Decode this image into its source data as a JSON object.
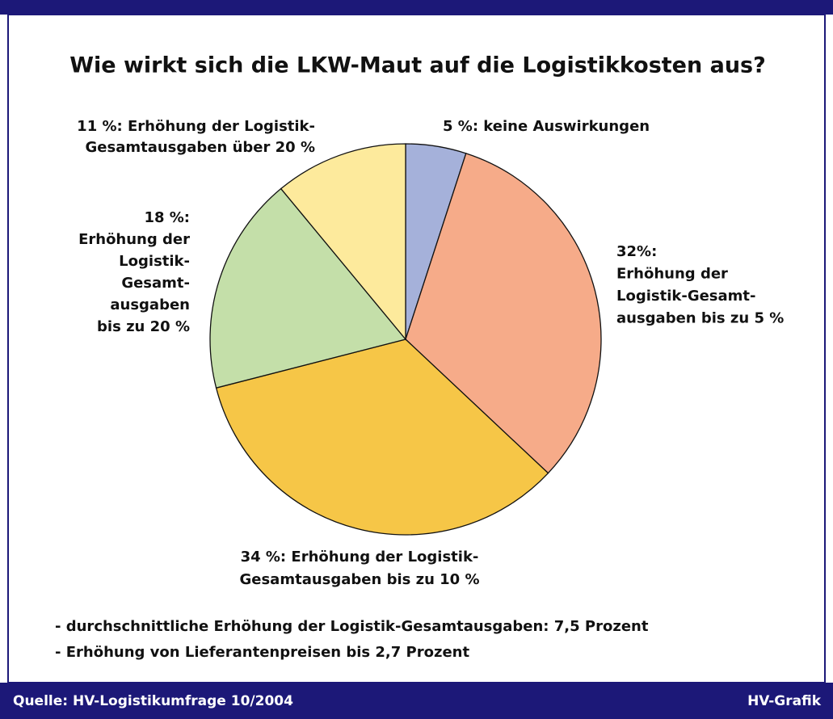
{
  "chart_data": {
    "type": "pie",
    "title": "Wie wirkt sich die LKW-Maut auf die Logistikkosten aus?",
    "categories": [
      [
        "5 %: keine Auswirkungen"
      ],
      [
        "32%:",
        "Erhöhung der",
        "Logistik-Gesamt-",
        "ausgaben bis zu 5 %"
      ],
      [
        "34 %: Erhöhung der Logistik-",
        "Gesamtausgaben bis zu 10 %"
      ],
      [
        "18 %:",
        "Erhöhung der",
        "Logistik-",
        "Gesamt-",
        "ausgaben",
        "bis zu 20 %"
      ],
      [
        "11 %: Erhöhung der Logistik-",
        "Gesamtausgaben über 20 %"
      ]
    ],
    "values": [
      5,
      32,
      34,
      18,
      11
    ],
    "colors": [
      "#a5b1da",
      "#f6ab89",
      "#f6c647",
      "#c4dfa9",
      "#fdea9c"
    ],
    "notes": [
      "- durchschnittliche Erhöhung der Logistik-Gesamtausgaben: 7,5 Prozent",
      "- Erhöhung von Lieferantenpreisen bis 2,7 Prozent"
    ],
    "source": "Quelle: HV-Logistikumfrage 10/2004",
    "credit": "HV-Grafik"
  }
}
